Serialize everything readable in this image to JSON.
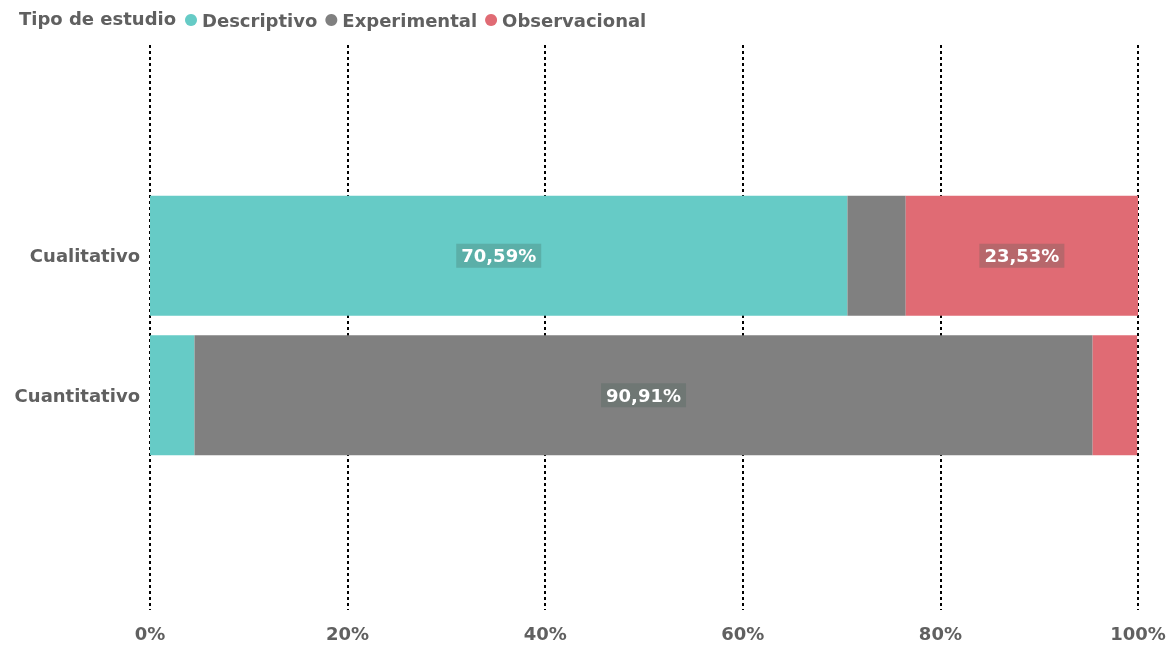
{
  "chart_data": {
    "type": "bar",
    "orientation": "horizontal",
    "stacked": true,
    "categories": [
      "Cualitativo",
      "Cuantitativo"
    ],
    "legend_title": "Tipo de estudio",
    "legend": "top left",
    "grid": "x",
    "series": [
      {
        "name": "Descriptivo",
        "color": "#66cbc6",
        "values": [
          70.59,
          4.5
        ],
        "value_labels": [
          "70,59%",
          null
        ]
      },
      {
        "name": "Experimental",
        "color": "#808080",
        "values": [
          5.9,
          90.91
        ],
        "value_labels": [
          null,
          "90,91%"
        ]
      },
      {
        "name": "Observacional",
        "color": "#e06b74",
        "values": [
          23.53,
          4.5
        ],
        "value_labels": [
          "23,53%",
          null
        ]
      }
    ],
    "xlim": [
      0,
      100
    ],
    "xticks": [
      {
        "value": 0,
        "label": "0%"
      },
      {
        "value": 20,
        "label": "20%"
      },
      {
        "value": 40,
        "label": "40%"
      },
      {
        "value": 60,
        "label": "60%"
      },
      {
        "value": 80,
        "label": "80%"
      },
      {
        "value": 100,
        "label": "100%"
      }
    ]
  }
}
